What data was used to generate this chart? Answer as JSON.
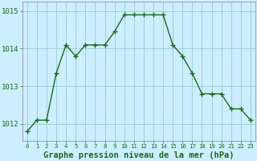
{
  "hours": [
    0,
    1,
    2,
    3,
    4,
    5,
    6,
    7,
    8,
    9,
    10,
    11,
    12,
    13,
    14,
    15,
    16,
    17,
    18,
    19,
    20,
    21,
    22,
    23
  ],
  "pressure": [
    1011.8,
    1012.1,
    1012.1,
    1013.35,
    1014.1,
    1013.8,
    1014.1,
    1014.1,
    1014.1,
    1014.45,
    1014.9,
    1014.9,
    1014.9,
    1014.9,
    1014.9,
    1014.1,
    1013.8,
    1013.35,
    1012.8,
    1012.8,
    1012.8,
    1012.4,
    1012.4,
    1012.1
  ],
  "line_color": "#1a6b1a",
  "marker": "+",
  "marker_size": 4,
  "marker_lw": 1.0,
  "line_width": 1.0,
  "bg_color": "#cceeff",
  "grid_color": "#99cccc",
  "ylabel_ticks": [
    1012,
    1013,
    1014,
    1015
  ],
  "ylim": [
    1011.55,
    1015.25
  ],
  "xlabel": "Graphe pression niveau de la mer (hPa)",
  "xtick_labels": [
    "0",
    "1",
    "2",
    "3",
    "4",
    "5",
    "6",
    "7",
    "8",
    "9",
    "10",
    "11",
    "12",
    "13",
    "14",
    "15",
    "16",
    "17",
    "18",
    "19",
    "20",
    "21",
    "22",
    "23"
  ],
  "tick_color": "#1a6b1a",
  "xlabel_fontsize": 7.5,
  "xlabel_fontweight": "bold",
  "ytick_fontsize": 6.5,
  "xtick_fontsize": 5.2
}
